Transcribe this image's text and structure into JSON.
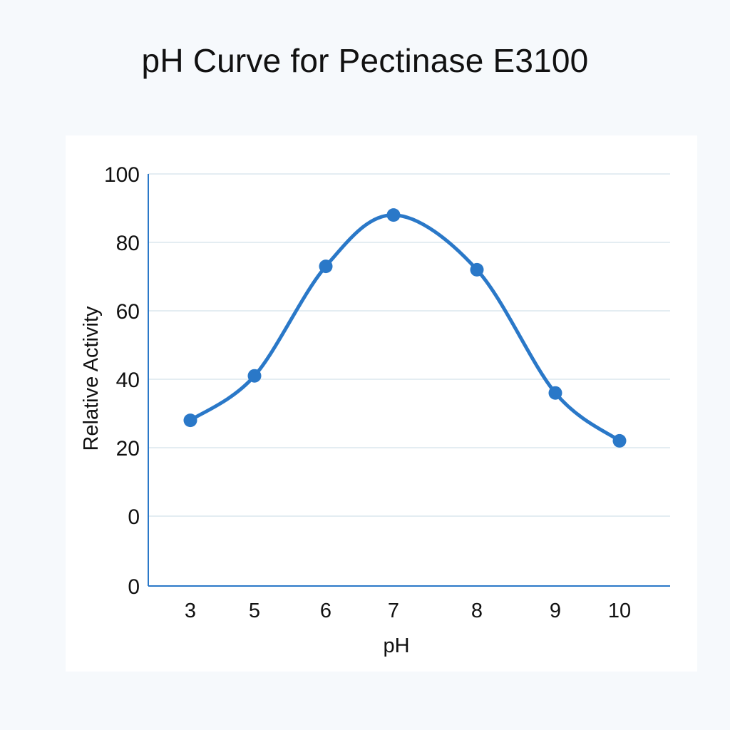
{
  "chart_data": {
    "type": "line",
    "title": "pH Curve for Pectinase E3100",
    "xlabel": "pH",
    "ylabel": "Relative Activity",
    "y_ticks": [
      "100",
      "80",
      "60",
      "40",
      "20",
      "0",
      "0"
    ],
    "x": [
      "3",
      "5",
      "6",
      "7",
      "8",
      "9",
      "10"
    ],
    "series": [
      {
        "values": [
          28,
          41,
          73,
          88,
          72,
          36,
          22
        ]
      }
    ],
    "ylim": [
      0,
      100
    ],
    "grid": true,
    "smooth": true,
    "colors": {
      "line": "#2a78c8",
      "axis": "#2a78c8",
      "grid": "#dbe7ee"
    }
  }
}
